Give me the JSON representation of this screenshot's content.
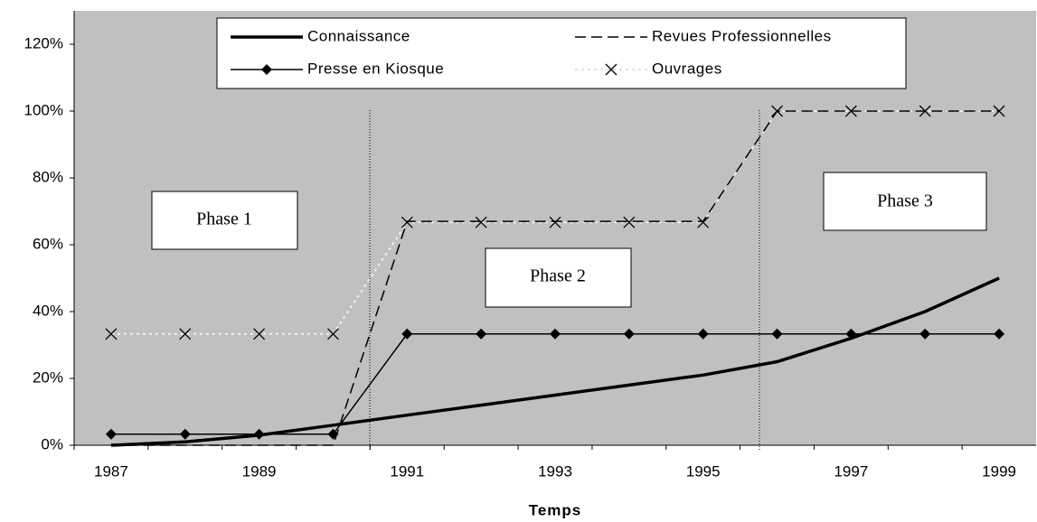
{
  "chart_data": {
    "type": "line",
    "x_label": "Temps",
    "categories": [
      "1987",
      null,
      "1989",
      null,
      "1991",
      null,
      "1993",
      null,
      "1995",
      null,
      "1997",
      null,
      "1999"
    ],
    "ylim": [
      0,
      130
    ],
    "yticks": [
      {
        "value": 0,
        "label": "0%"
      },
      {
        "value": 20,
        "label": "20%"
      },
      {
        "value": 40,
        "label": "40%"
      },
      {
        "value": 60,
        "label": "60%"
      },
      {
        "value": 80,
        "label": "80%"
      },
      {
        "value": 100,
        "label": "100%"
      },
      {
        "value": 120,
        "label": "120%"
      }
    ],
    "background": "#c0c0c0",
    "series": [
      {
        "name": "Connaissance",
        "color": "#000000",
        "line_style": "solid",
        "line_width": 3.5,
        "marker": "none",
        "values": [
          0,
          1,
          3,
          6,
          9,
          12,
          15,
          18,
          21,
          25,
          32,
          40,
          50
        ]
      },
      {
        "name": "Revues Professionnelles",
        "color": "#000000",
        "line_style": "dashed",
        "line_width": 1.5,
        "marker": "none",
        "values": [
          0,
          0,
          0,
          0,
          67,
          67,
          67,
          67,
          67,
          100,
          100,
          100,
          100
        ]
      },
      {
        "name": "Presse en Kiosque",
        "color": "#000000",
        "line_style": "solid",
        "line_width": 1.5,
        "marker": "diamond",
        "marker_color": "#000000",
        "values": [
          3.3,
          3.3,
          3.3,
          3.3,
          33.3,
          33.3,
          33.3,
          33.3,
          33.3,
          33.3,
          33.3,
          33.3,
          33.3
        ]
      },
      {
        "name": "Ouvrages",
        "color": "#f0f0f0",
        "line_style": "dotted",
        "line_width": 2,
        "marker": "x",
        "marker_color": "#000000",
        "values": [
          33.3,
          33.3,
          33.3,
          33.3,
          66.7,
          66.7,
          66.7,
          66.7,
          66.7,
          100,
          100,
          100,
          100
        ]
      }
    ],
    "annotations": [
      "Phase 1",
      "Phase 2",
      "Phase 3"
    ]
  }
}
